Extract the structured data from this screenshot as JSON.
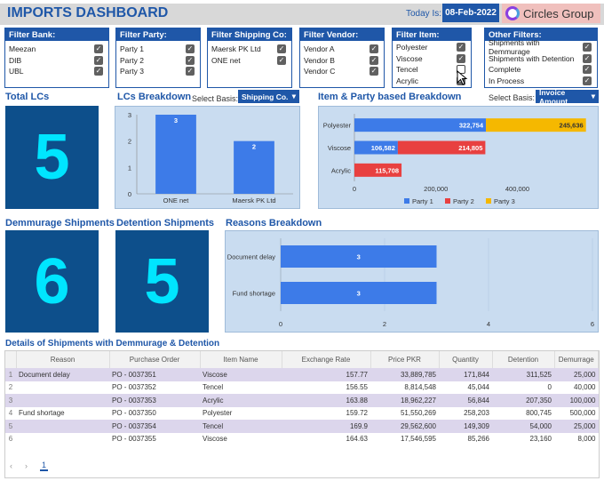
{
  "header": {
    "title": "IMPORTS DASHBOARD",
    "today_label": "Today Is:",
    "date": "08-Feb-2022",
    "brand": "Circles Group"
  },
  "filters": [
    {
      "title": "Filter Bank:",
      "items": [
        {
          "label": "Meezan",
          "checked": true
        },
        {
          "label": "DIB",
          "checked": true
        },
        {
          "label": "UBL",
          "checked": true
        }
      ]
    },
    {
      "title": "Filter Party:",
      "items": [
        {
          "label": "Party 1",
          "checked": true
        },
        {
          "label": "Party 2",
          "checked": true
        },
        {
          "label": "Party 3",
          "checked": true
        }
      ]
    },
    {
      "title": "Filter Shipping Co:",
      "items": [
        {
          "label": "Maersk PK Ltd",
          "checked": true
        },
        {
          "label": "ONE net",
          "checked": true
        }
      ]
    },
    {
      "title": "Filter Vendor:",
      "items": [
        {
          "label": "Vendor A",
          "checked": true
        },
        {
          "label": "Vendor B",
          "checked": true
        },
        {
          "label": "Vendor C",
          "checked": true
        }
      ]
    },
    {
      "title": "Filter Item:",
      "items": [
        {
          "label": "Polyester",
          "checked": true
        },
        {
          "label": "Viscose",
          "checked": true
        },
        {
          "label": "Tencel",
          "checked": false
        },
        {
          "label": "Acrylic",
          "checked": true
        }
      ]
    },
    {
      "title": "Other Filters:",
      "items": [
        {
          "label": "Shipments with Demmurage",
          "checked": true
        },
        {
          "label": "Shipments with Detention",
          "checked": true
        },
        {
          "label": "Complete",
          "checked": true
        },
        {
          "label": "In Process",
          "checked": true
        }
      ]
    }
  ],
  "kpis": {
    "total_lcs": {
      "label": "Total LCs",
      "value": "5"
    },
    "demurrage": {
      "label": "Demmurage Shipments",
      "value": "6"
    },
    "detention": {
      "label": "Detention Shipments",
      "value": "5"
    }
  },
  "lc_breakdown": {
    "title": "LCs Breakdown",
    "basis_label": "Select Basis:",
    "basis_value": "Shipping Co.",
    "chart_data": {
      "type": "bar",
      "categories": [
        "ONE net",
        "Maersk PK Ltd"
      ],
      "values": [
        3,
        2
      ],
      "ylim": [
        0,
        3
      ],
      "yticks": [
        "0",
        "1",
        "2",
        "3"
      ],
      "color": "#3d7be8"
    }
  },
  "item_party": {
    "title": "Item & Party based Breakdown",
    "basis_label": "Select Basis:",
    "basis_value": "Invoice Amount",
    "chart_data": {
      "type": "bar",
      "orientation": "horizontal",
      "stacked": true,
      "categories": [
        "Polyester",
        "Viscose",
        "Acrylic"
      ],
      "series": [
        {
          "name": "Party 1",
          "color": "#3d7be8",
          "values": [
            322754,
            106582,
            0
          ],
          "labels": [
            "322,754",
            "106,582",
            ""
          ]
        },
        {
          "name": "Party 2",
          "color": "#e84040",
          "values": [
            0,
            214805,
            115708
          ],
          "labels": [
            "",
            "214,805",
            "115,708"
          ]
        },
        {
          "name": "Party 3",
          "color": "#f5b800",
          "values": [
            245636,
            0,
            0
          ],
          "labels": [
            "245,636",
            "",
            ""
          ]
        }
      ],
      "xlim": [
        0,
        580000
      ],
      "xticks": [
        {
          "v": 0,
          "t": "0"
        },
        {
          "v": 200000,
          "t": "200,000"
        },
        {
          "v": 400000,
          "t": "400,000"
        }
      ],
      "legend": "bottom"
    }
  },
  "reasons": {
    "title": "Reasons Breakdown",
    "chart_data": {
      "type": "bar",
      "orientation": "horizontal",
      "categories": [
        "Document delay",
        "Fund shortage"
      ],
      "values": [
        3,
        3
      ],
      "labels": [
        "3",
        "3"
      ],
      "xlim": [
        0,
        6
      ],
      "xticks": [
        {
          "v": 0,
          "t": "0"
        },
        {
          "v": 2,
          "t": "2"
        },
        {
          "v": 4,
          "t": "4"
        },
        {
          "v": 6,
          "t": "6"
        }
      ],
      "color": "#3d7be8"
    }
  },
  "table": {
    "title": "Details of Shipments with Demmurage & Detention",
    "columns": [
      "Reason",
      "Purchase Order",
      "Item Name",
      "Exchange Rate",
      "Price PKR",
      "Quantity",
      "Detention",
      "Demurrage"
    ],
    "rows": [
      {
        "idx": "1",
        "reason": "Document delay",
        "po": "PO - 0037351",
        "item": "Viscose",
        "rate": "157.77",
        "price": "33,889,785",
        "qty": "171,844",
        "det": "311,525",
        "dem": "25,000"
      },
      {
        "idx": "2",
        "reason": "",
        "po": "PO - 0037352",
        "item": "Tencel",
        "rate": "156.55",
        "price": "8,814,548",
        "qty": "45,044",
        "det": "0",
        "dem": "40,000"
      },
      {
        "idx": "3",
        "reason": "",
        "po": "PO - 0037353",
        "item": "Acrylic",
        "rate": "163.88",
        "price": "18,962,227",
        "qty": "56,844",
        "det": "207,350",
        "dem": "100,000"
      },
      {
        "idx": "4",
        "reason": "Fund shortage",
        "po": "PO - 0037350",
        "item": "Polyester",
        "rate": "159.72",
        "price": "51,550,269",
        "qty": "258,203",
        "det": "800,745",
        "dem": "500,000"
      },
      {
        "idx": "5",
        "reason": "",
        "po": "PO - 0037354",
        "item": "Tencel",
        "rate": "169.9",
        "price": "29,562,600",
        "qty": "149,309",
        "det": "54,000",
        "dem": "25,000"
      },
      {
        "idx": "6",
        "reason": "",
        "po": "PO - 0037355",
        "item": "Viscose",
        "rate": "164.63",
        "price": "17,546,595",
        "qty": "85,266",
        "det": "23,160",
        "dem": "8,000"
      }
    ],
    "page": "1"
  }
}
